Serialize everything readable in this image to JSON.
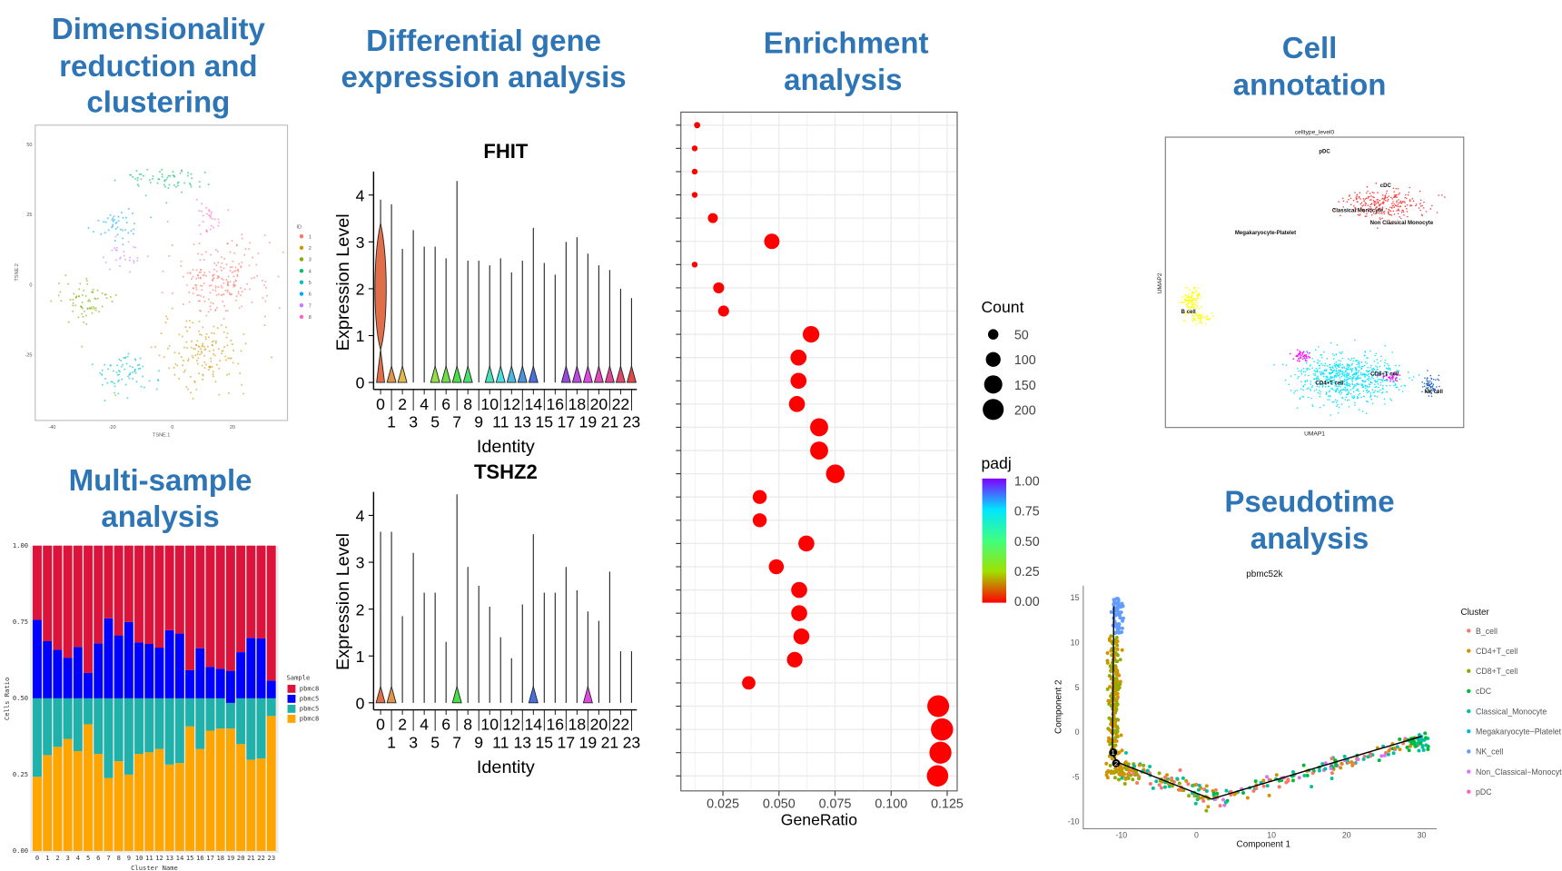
{
  "titles": {
    "dimred": [
      "Dimensionality",
      "reduction  and",
      "clustering"
    ],
    "multisample": [
      "Multi-sample",
      "analysis"
    ],
    "deg": [
      "Differential  gene",
      "expression  analysis"
    ],
    "enrichment": [
      "Enrichment",
      "analysis"
    ],
    "annotation": [
      "Cell",
      "annotation"
    ],
    "pseudotime": [
      "Pseudotime",
      "analysis"
    ]
  },
  "chart_data": [
    {
      "id": "tsne",
      "type": "scatter",
      "xlabel": "TSNE.1",
      "ylabel": "TSNE.2",
      "xticks": [
        -40,
        -20,
        0,
        20
      ],
      "yticks": [
        50,
        25,
        0,
        -25
      ],
      "legend_title": "ID",
      "legend_position": "right",
      "series": [
        {
          "name": "1",
          "color": "#F8766D",
          "center": [
            16,
            2
          ],
          "spread": [
            17,
            14
          ]
        },
        {
          "name": "2",
          "color": "#CD9600",
          "center": [
            11,
            -25
          ],
          "spread": [
            14,
            12
          ]
        },
        {
          "name": "3",
          "color": "#7CAE00",
          "center": [
            -29,
            -6
          ],
          "spread": [
            10,
            8
          ]
        },
        {
          "name": "4",
          "color": "#00BE67",
          "center": [
            -2,
            37
          ],
          "spread": [
            14,
            5
          ]
        },
        {
          "name": "5",
          "color": "#00BFC4",
          "center": [
            -16,
            -31
          ],
          "spread": [
            10,
            8
          ]
        },
        {
          "name": "6",
          "color": "#00A9FF",
          "center": [
            -18,
            21
          ],
          "spread": [
            8,
            6
          ]
        },
        {
          "name": "7",
          "color": "#C77CFF",
          "center": [
            -16,
            10
          ],
          "spread": [
            6,
            5
          ]
        },
        {
          "name": "8",
          "color": "#FF61CC",
          "center": [
            12,
            25
          ],
          "spread": [
            5,
            6
          ]
        }
      ]
    },
    {
      "id": "cell_ratio",
      "type": "bar",
      "stacked": true,
      "xlabel": "Cluster Name",
      "ylabel": "Cells Ratio",
      "ylim": [
        0,
        1
      ],
      "yticks": [
        "0.00",
        "0.25",
        "0.50",
        "0.75",
        "1.00"
      ],
      "categories": [
        "0",
        "1",
        "2",
        "3",
        "4",
        "5",
        "6",
        "7",
        "8",
        "9",
        "10",
        "11",
        "12",
        "13",
        "14",
        "15",
        "16",
        "17",
        "18",
        "19",
        "20",
        "21",
        "22",
        "23"
      ],
      "legend_title": "Sample",
      "legend_position": "right",
      "series": [
        {
          "name": "pbmc8",
          "color": "#DC143C",
          "values": [
            0.243,
            0.313,
            0.341,
            0.367,
            0.332,
            0.417,
            0.32,
            0.238,
            0.294,
            0.25,
            0.317,
            0.322,
            0.334,
            0.277,
            0.288,
            0.408,
            0.336,
            0.397,
            0.403,
            0.41,
            0.349,
            0.302,
            0.304,
            0.442
          ]
        },
        {
          "name": "pbmc5",
          "color": "#0000FF",
          "values": [
            0.257,
            0.187,
            0.159,
            0.133,
            0.168,
            0.083,
            0.18,
            0.262,
            0.206,
            0.25,
            0.183,
            0.178,
            0.166,
            0.223,
            0.212,
            0.092,
            0.164,
            0.103,
            0.097,
            0.105,
            0.151,
            0.198,
            0.196,
            0.058
          ]
        },
        {
          "name": "pbmc5",
          "color": "#20B2AA",
          "values": [
            0.257,
            0.186,
            0.159,
            0.133,
            0.173,
            0.085,
            0.182,
            0.261,
            0.206,
            0.25,
            0.182,
            0.177,
            0.166,
            0.217,
            0.212,
            0.092,
            0.166,
            0.106,
            0.099,
            0.084,
            0.15,
            0.201,
            0.197,
            0.058
          ]
        },
        {
          "name": "pbmc8",
          "color": "#FFA500",
          "values": [
            0.243,
            0.314,
            0.341,
            0.367,
            0.327,
            0.415,
            0.318,
            0.239,
            0.294,
            0.25,
            0.318,
            0.323,
            0.334,
            0.283,
            0.288,
            0.408,
            0.334,
            0.394,
            0.401,
            0.401,
            0.35,
            0.299,
            0.303,
            0.442
          ]
        }
      ]
    },
    {
      "id": "violin_fhit",
      "type": "violin",
      "title": "FHIT",
      "xlabel": "Identity",
      "ylabel": "Expression Level",
      "yticks": [
        0,
        1,
        2,
        3,
        4
      ],
      "categories": [
        "0",
        "1",
        "2",
        "3",
        "4",
        "5",
        "6",
        "7",
        "8",
        "9",
        "10",
        "11",
        "12",
        "13",
        "14",
        "15",
        "16",
        "17",
        "18",
        "19",
        "20",
        "21",
        "22",
        "23"
      ],
      "max": [
        3.9,
        3.8,
        2.85,
        3.25,
        2.9,
        2.9,
        2.65,
        4.3,
        2.6,
        2.6,
        2.5,
        2.65,
        2.35,
        2.6,
        3.3,
        2.55,
        2.3,
        3.0,
        3.1,
        2.75,
        2.5,
        2.4,
        2.0,
        1.8
      ]
    },
    {
      "id": "violin_tshz2",
      "type": "violin",
      "title": "TSHZ2",
      "xlabel": "Identity",
      "ylabel": "Expression Level",
      "yticks": [
        0,
        1,
        2,
        3,
        4
      ],
      "categories": [
        "0",
        "1",
        "2",
        "3",
        "4",
        "5",
        "6",
        "7",
        "8",
        "9",
        "10",
        "11",
        "12",
        "13",
        "14",
        "15",
        "16",
        "17",
        "18",
        "19",
        "20",
        "21",
        "22",
        "23"
      ],
      "max": [
        3.65,
        3.65,
        1.85,
        3.2,
        2.35,
        2.35,
        1.3,
        4.45,
        2.9,
        2.5,
        2.05,
        1.4,
        0.95,
        2.1,
        3.6,
        2.35,
        2.35,
        2.9,
        2.4,
        1.95,
        1.75,
        2.8,
        1.1,
        1.1
      ]
    },
    {
      "id": "enrichment",
      "type": "scatter",
      "xlabel": "GeneRatio",
      "xticks": [
        "0.025",
        "0.050",
        "0.075",
        "0.100",
        "0.125"
      ],
      "x": [
        0.0135,
        0.0124,
        0.0124,
        0.0124,
        0.0205,
        0.0468,
        0.0124,
        0.0231,
        0.0253,
        0.0643,
        0.0587,
        0.0587,
        0.058,
        0.0679,
        0.0679,
        0.0751,
        0.0414,
        0.0414,
        0.0622,
        0.0488,
        0.059,
        0.059,
        0.06,
        0.057,
        0.0365,
        0.121,
        0.1227,
        0.122,
        0.1207
      ],
      "count": [
        18,
        15,
        15,
        15,
        45,
        108,
        15,
        55,
        55,
        126,
        117,
        117,
        117,
        148,
        148,
        158,
        90,
        90,
        117,
        103,
        117,
        117,
        117,
        112,
        82,
        216,
        225,
        220,
        210
      ],
      "padj": 0.0,
      "size_legend": {
        "title": "Count",
        "values": [
          "50",
          "100",
          "150",
          "200"
        ]
      },
      "color_legend": {
        "title": "padj",
        "values": [
          "1.00",
          "0.75",
          "0.50",
          "0.25",
          "0.00"
        ],
        "colors": [
          "#8000FF",
          "#00BFFF",
          "#40FF80",
          "#A0E000",
          "#FF0000"
        ]
      },
      "dot_color": "#FF0000"
    },
    {
      "id": "umap",
      "type": "scatter",
      "title": "celltype_level0",
      "xlabel": "UMAP1",
      "ylabel": "UMAP2",
      "labels": [
        "pDC",
        "cDC",
        "Classical Monocyte",
        "Non Classical Monocyte",
        "Megakaryocyte-Platelet",
        "B cell",
        "CD4+T cell",
        "CD8+T cell",
        "NK cell"
      ],
      "colors": {
        "B cell": "#FFFF00",
        "CD4+T cell": "#00E5FF",
        "CD8+T cell": "#FF00FF",
        "NK cell": "#1E60C0",
        "Classical Monocyte": "#FF3B3B"
      }
    },
    {
      "id": "pseudotime",
      "type": "scatter",
      "title": "pbmc52k",
      "xlabel": "Component 1",
      "ylabel": "Component 2",
      "xticks": [
        -10,
        0,
        10,
        20,
        30
      ],
      "yticks": [
        15,
        10,
        5,
        0,
        -5,
        -10
      ],
      "legend_title": "Cluster",
      "legend_position": "right",
      "branch_points": [
        "1",
        "2"
      ],
      "series": [
        {
          "name": "B_cell",
          "color": "#F8766D"
        },
        {
          "name": "CD4+T_cell",
          "color": "#D39200"
        },
        {
          "name": "CD8+T_cell",
          "color": "#93AA00"
        },
        {
          "name": "cDC",
          "color": "#00BA38"
        },
        {
          "name": "Classical_Monocyte",
          "color": "#00C19F"
        },
        {
          "name": "Megakaryocyte−Platelet",
          "color": "#00B9E3"
        },
        {
          "name": "NK_cell",
          "color": "#619CFF"
        },
        {
          "name": "Non_Classical−Monocyte",
          "color": "#DB72FB"
        },
        {
          "name": "pDC",
          "color": "#FF61C3"
        }
      ]
    }
  ]
}
